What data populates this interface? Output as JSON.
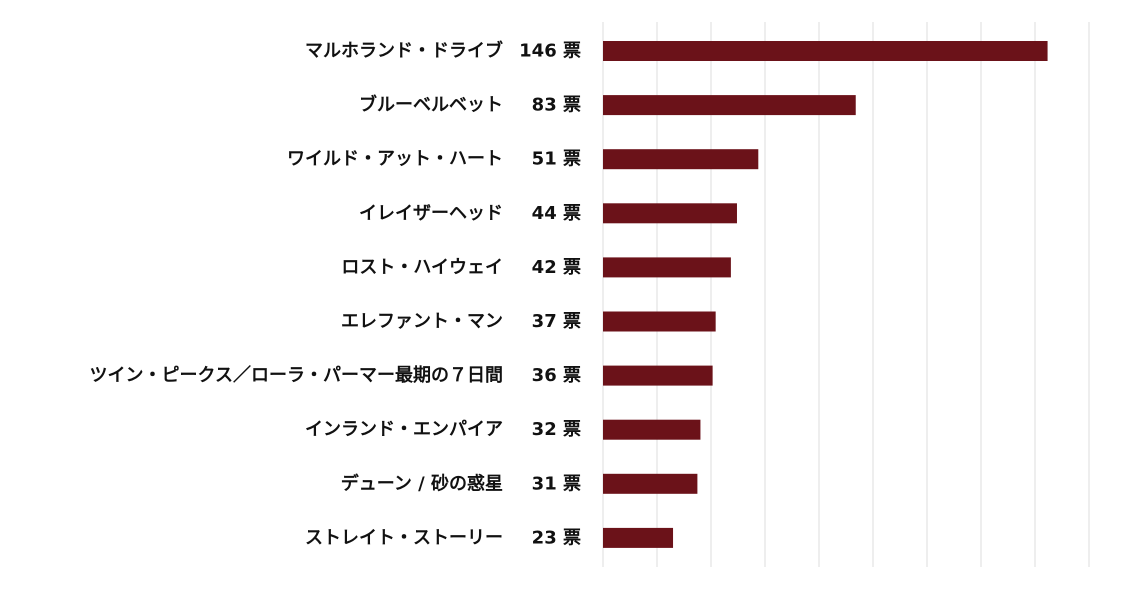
{
  "chart_data": {
    "type": "bar",
    "orientation": "horizontal",
    "title": "",
    "xlabel": "",
    "ylabel": "",
    "value_suffix": " 票",
    "xlim": [
      0,
      150
    ],
    "grid": true,
    "bar_color": "#6b1219",
    "categories": [
      "マルホランド・ドライブ",
      "ブルーベルベット",
      "ワイルド・アット・ハート",
      "イレイザーヘッド",
      "ロスト・ハイウェイ",
      "エレファント・マン",
      "ツイン・ピークス／ローラ・パーマー最期の７日間",
      "インランド・エンパイア",
      "デューン / 砂の惑星",
      "ストレイト・ストーリー"
    ],
    "values": [
      146,
      83,
      51,
      44,
      42,
      37,
      36,
      32,
      31,
      23
    ]
  }
}
